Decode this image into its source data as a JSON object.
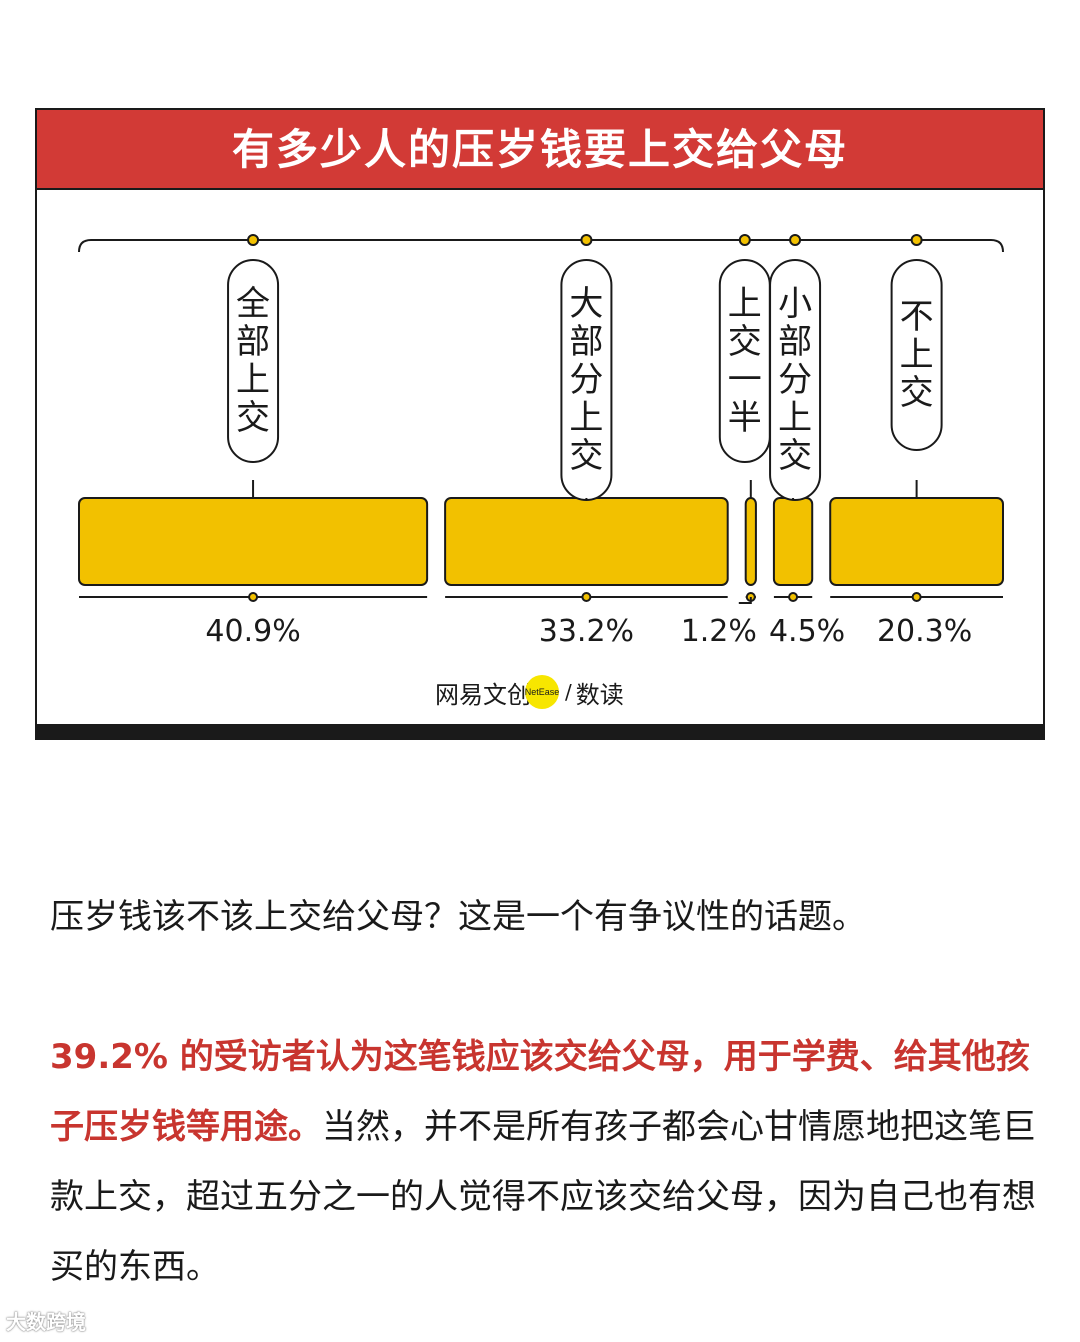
{
  "chart_data": {
    "type": "bar",
    "title": "有多少人的压岁钱要上交给父母",
    "categories": [
      "全部上交",
      "大部分上交",
      "上交一半",
      "小部分上交",
      "不上交"
    ],
    "values": [
      40.9,
      33.2,
      1.2,
      4.5,
      20.3
    ],
    "value_labels": [
      "40.9%",
      "33.2%",
      "1.2%",
      "4.5%",
      "20.3%"
    ],
    "bar_color": "#f2c100",
    "title_bg": "#d23a36"
  },
  "brand": {
    "left": "网易文创",
    "badge": "NetEase",
    "slash": "/",
    "right": "数读"
  },
  "body": {
    "p1": "压岁钱该不该上交给父母？这是一个有争议性的话题。",
    "p2_highlight": "39.2% 的受访者认为这笔钱应该交给父母，用于学费、给其他孩子压岁钱等用途。",
    "p2_rest": "当然，并不是所有孩子都会心甘情愿地把这笔巨款上交，超过五分之一的人觉得不应该交给父母，因为自己也有想买的东西。"
  },
  "watermark": "大数跨境"
}
